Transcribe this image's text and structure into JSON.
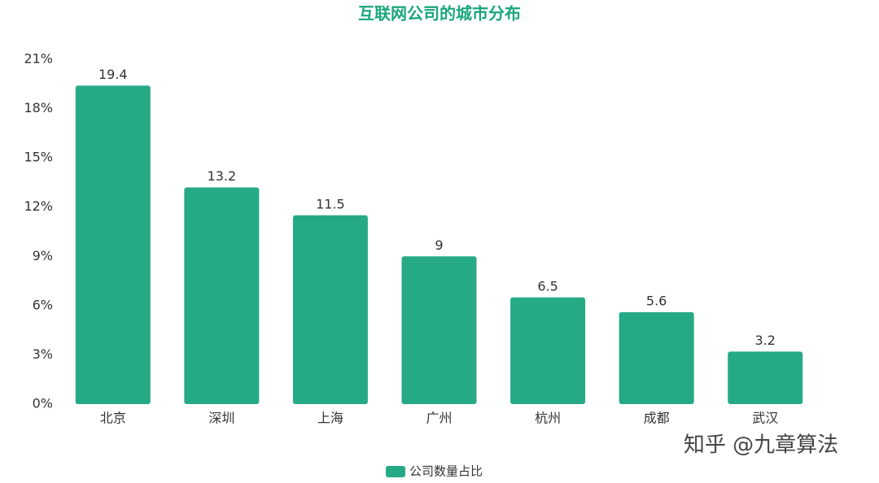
{
  "chart_data": {
    "type": "bar",
    "title": "互联网公司的城市分布",
    "categories": [
      "北京",
      "深圳",
      "上海",
      "广州",
      "杭州",
      "成都",
      "武汉"
    ],
    "series": [
      {
        "name": "公司数量占比",
        "color": "#26aa86",
        "values": [
          19.4,
          13.2,
          11.5,
          9,
          6.5,
          5.6,
          3.2
        ]
      }
    ],
    "ylim": [
      0,
      21
    ],
    "yticks": [
      {
        "value": 0,
        "label": "0%"
      },
      {
        "value": 3,
        "label": "3%"
      },
      {
        "value": 6,
        "label": "6%"
      },
      {
        "value": 9,
        "label": "9%"
      },
      {
        "value": 12,
        "label": "12%"
      },
      {
        "value": 15,
        "label": "15%"
      },
      {
        "value": 18,
        "label": "18%"
      },
      {
        "value": 21,
        "label": "21%"
      }
    ],
    "grid": false,
    "legend": "bottom",
    "watermark": "知乎 @九章算法"
  }
}
